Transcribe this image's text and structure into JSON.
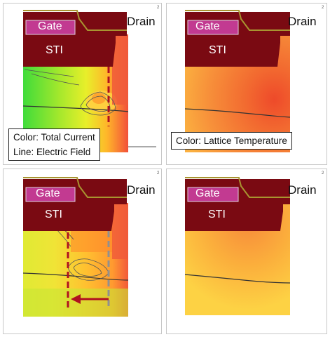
{
  "panels": [
    {
      "drain": "Drain",
      "gate": "Gate",
      "sti": "STI",
      "corner": "2",
      "legend_lines": [
        "Color: Total Current",
        "Line: Electric Field"
      ]
    },
    {
      "drain": "Drain",
      "gate": "Gate",
      "sti": "STI",
      "corner": "2",
      "legend_lines": [
        "Color: Lattice Temperature"
      ]
    },
    {
      "drain": "Drain",
      "gate": "Gate",
      "sti": "STI",
      "corner": "2"
    },
    {
      "drain": "Drain",
      "gate": "Gate",
      "sti": "STI",
      "corner": "2"
    }
  ],
  "colors": {
    "sti": "#7a0a12",
    "gate": "#c23a91",
    "gate_liner": "#a89430",
    "dashed_red": "#b01020",
    "dashed_gray": "#909090",
    "arrow": "#b01020"
  }
}
